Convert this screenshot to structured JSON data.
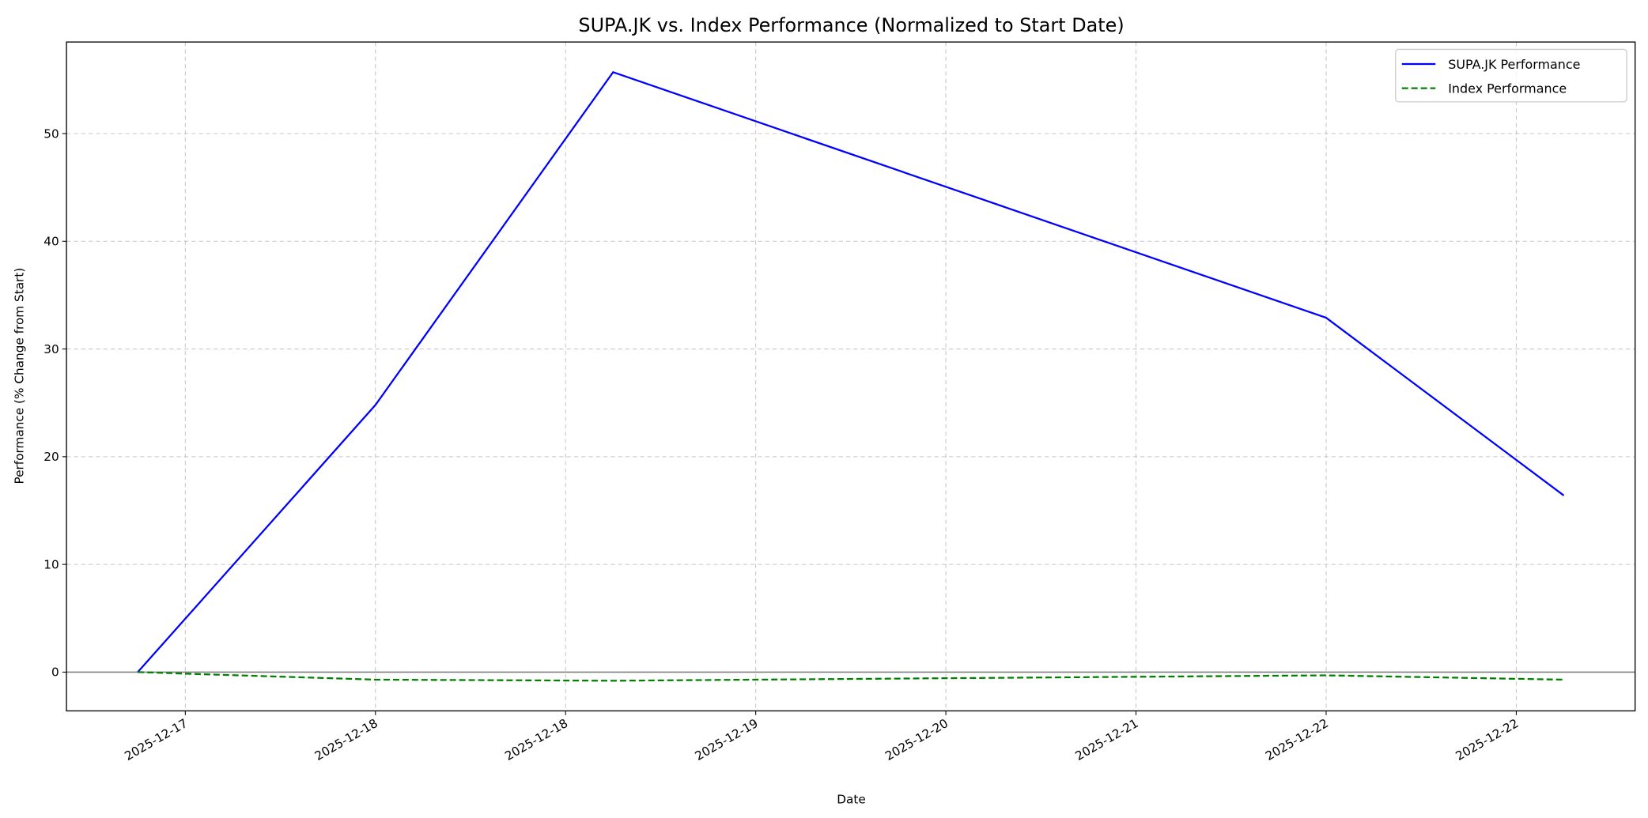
{
  "chart_data": {
    "type": "line",
    "title": "SUPA.JK vs. Index Performance (Normalized to Start Date)",
    "x_label": "Date",
    "y_label": "Performance (% Change from Start)",
    "x": [
      "2025-12-17",
      "2025-12-18",
      "2025-12-19",
      "2025-12-22",
      "2025-12-23"
    ],
    "series": [
      {
        "name": "SUPA.JK Performance",
        "color": "#0000ff",
        "dash": "solid",
        "values": [
          0,
          24.8,
          55.7,
          32.9,
          16.4
        ]
      },
      {
        "name": "Index Performance",
        "color": "#008000",
        "dash": "dashed",
        "values": [
          0,
          -0.7,
          -0.8,
          -0.3,
          -0.7
        ]
      }
    ],
    "xlim": [
      "2025-12-16T16:48",
      "2025-12-23T07:12"
    ],
    "xticks": [
      {
        "value": "2025-12-17T04:48",
        "label": "2025-12-17"
      },
      {
        "value": "2025-12-18T00:00",
        "label": "2025-12-18"
      },
      {
        "value": "2025-12-18T19:12",
        "label": "2025-12-18"
      },
      {
        "value": "2025-12-19T14:24",
        "label": "2025-12-19"
      },
      {
        "value": "2025-12-20T09:36",
        "label": "2025-12-20"
      },
      {
        "value": "2025-12-21T04:48",
        "label": "2025-12-21"
      },
      {
        "value": "2025-12-22T00:00",
        "label": "2025-12-22"
      },
      {
        "value": "2025-12-22T19:12",
        "label": "2025-12-22"
      }
    ],
    "ylim": [
      -3.6,
      58.5
    ],
    "yticks": [
      0,
      10,
      20,
      30,
      40,
      50
    ],
    "axhline": 0,
    "grid": true,
    "legend": "upper right"
  }
}
